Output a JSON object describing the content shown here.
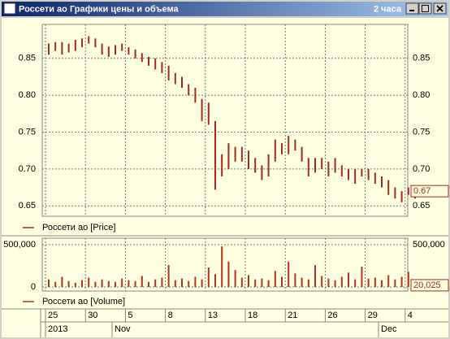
{
  "window": {
    "title": "Россети ао Графики цены и объема",
    "interval": "2 часа"
  },
  "chart_data": [
    {
      "type": "hilo",
      "ylim": [
        0.636,
        0.896
      ],
      "yticks": [
        0.65,
        {
          "value": 0.7,
          "label": "0.70"
        },
        0.75,
        {
          "value": 0.8,
          "label": "0.80"
        },
        0.85
      ],
      "grid": true,
      "last_tick": 0.67,
      "series": [
        {
          "name": "Россети ао [Price]",
          "color": "#a8281e",
          "high": [
            0.87,
            0.872,
            0.872,
            0.87,
            0.875,
            0.877,
            0.88,
            0.877,
            0.87,
            0.866,
            0.868,
            0.87,
            0.865,
            0.862,
            0.857,
            0.852,
            0.85,
            0.845,
            0.84,
            0.83,
            0.825,
            0.815,
            0.81,
            0.795,
            0.79,
            0.765,
            0.72,
            0.735,
            0.73,
            0.73,
            0.725,
            0.715,
            0.705,
            0.72,
            0.74,
            0.735,
            0.745,
            0.74,
            0.73,
            0.715,
            0.715,
            0.715,
            0.71,
            0.715,
            0.705,
            0.7,
            0.7,
            0.7,
            0.7,
            0.695,
            0.69,
            0.685,
            0.675,
            0.67,
            0.675,
            0.672
          ],
          "low": [
            0.855,
            0.86,
            0.855,
            0.858,
            0.86,
            0.865,
            0.87,
            0.865,
            0.855,
            0.852,
            0.855,
            0.86,
            0.855,
            0.85,
            0.845,
            0.84,
            0.835,
            0.83,
            0.82,
            0.815,
            0.81,
            0.8,
            0.79,
            0.765,
            0.76,
            0.672,
            0.69,
            0.7,
            0.71,
            0.71,
            0.7,
            0.695,
            0.685,
            0.69,
            0.71,
            0.72,
            0.72,
            0.725,
            0.71,
            0.69,
            0.695,
            0.7,
            0.69,
            0.695,
            0.69,
            0.685,
            0.68,
            0.69,
            0.685,
            0.68,
            0.675,
            0.665,
            0.66,
            0.655,
            0.665,
            0.66
          ]
        }
      ]
    },
    {
      "type": "bar",
      "ylim": [
        -48000,
        577000
      ],
      "yticks": [
        0,
        {
          "value": 500000,
          "label": "500,000"
        }
      ],
      "grid": true,
      "last_tick": {
        "value": 20025,
        "label": "20,025"
      },
      "categories": [
        "25",
        null,
        null,
        null,
        null,
        null,
        "30",
        null,
        null,
        null,
        null,
        null,
        "5",
        null,
        null,
        null,
        null,
        null,
        "8",
        null,
        null,
        null,
        null,
        null,
        "13",
        null,
        null,
        null,
        null,
        null,
        "18",
        null,
        null,
        null,
        null,
        null,
        "21",
        null,
        null,
        null,
        null,
        null,
        "26",
        null,
        null,
        null,
        null,
        null,
        "29",
        null,
        null,
        null,
        null,
        null,
        "4",
        null
      ],
      "months": [
        "2013",
        null,
        null,
        null,
        null,
        null,
        null,
        null,
        null,
        null,
        "Nov",
        null,
        null,
        null,
        null,
        null,
        null,
        null,
        null,
        null,
        null,
        null,
        null,
        null,
        null,
        null,
        null,
        null,
        null,
        null,
        null,
        null,
        null,
        null,
        null,
        null,
        null,
        null,
        null,
        null,
        null,
        null,
        null,
        null,
        null,
        null,
        null,
        null,
        null,
        null,
        "Dec",
        null,
        null,
        null,
        null,
        null
      ],
      "series": [
        {
          "name": "Россети ао [Volume]",
          "color": "#b8301e",
          "values": [
            90000,
            60000,
            120000,
            70000,
            50000,
            80000,
            110000,
            60000,
            90000,
            70000,
            60000,
            100000,
            80000,
            70000,
            130000,
            60000,
            90000,
            110000,
            260000,
            80000,
            100000,
            70000,
            120000,
            90000,
            230000,
            150000,
            480000,
            300000,
            200000,
            110000,
            140000,
            90000,
            100000,
            80000,
            190000,
            120000,
            300000,
            160000,
            110000,
            90000,
            260000,
            130000,
            100000,
            80000,
            120000,
            170000,
            90000,
            240000,
            100000,
            110000,
            80000,
            140000,
            90000,
            120000,
            180000,
            20025
          ]
        }
      ]
    }
  ]
}
